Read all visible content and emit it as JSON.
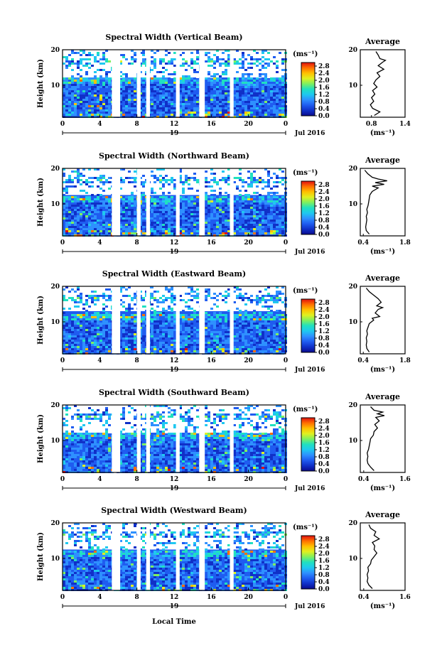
{
  "figure": {
    "x_axis_label": "Local Time",
    "colorbar_unit": "(ms⁻¹)",
    "avg_unit": "(ms⁻¹)",
    "date_label": "Jul 2016",
    "colormap": [
      "#0a0a8c",
      "#1030c8",
      "#1f5cf0",
      "#2e90ff",
      "#1fc8f0",
      "#20e0c0",
      "#7df060",
      "#e0f020",
      "#ffc000",
      "#ff7000",
      "#e01010"
    ]
  },
  "chart_data": [
    {
      "type": "heatmap",
      "title": "Spectral Width (Vertical Beam)",
      "ylabel": "Height (km)",
      "x_ticks": [
        "0",
        "4",
        "8",
        "12",
        "16",
        "20",
        "0"
      ],
      "y_ticks": [
        "20",
        "10"
      ],
      "day_label": "19",
      "xlim": [
        0,
        24
      ],
      "ylim": [
        1,
        20
      ],
      "data_gaps": [
        [
          5.3,
          6.2
        ],
        [
          8.0,
          8.4
        ],
        [
          9.0,
          9.4
        ],
        [
          12.2,
          12.6
        ],
        [
          14.7,
          15.3
        ],
        [
          18.0,
          18.4
        ]
      ],
      "colorbar": {
        "ticks": [
          "2.8",
          "2.4",
          "2.0",
          "1.6",
          "1.2",
          "0.8",
          "0.4",
          "0.0"
        ],
        "range": [
          0,
          3
        ]
      },
      "average": {
        "title": "Average",
        "x_ticks": [
          "0.8",
          "1.4"
        ],
        "xlim": [
          0.6,
          1.4
        ],
        "y_ticks": [
          "20",
          "10"
        ],
        "ylim": [
          1,
          20
        ],
        "profile": [
          [
            0.85,
            1.5
          ],
          [
            0.95,
            2.5
          ],
          [
            0.82,
            3.5
          ],
          [
            0.78,
            4.5
          ],
          [
            0.84,
            5.5
          ],
          [
            0.8,
            6.5
          ],
          [
            0.86,
            7.5
          ],
          [
            0.82,
            8.5
          ],
          [
            0.9,
            9.5
          ],
          [
            0.84,
            10.5
          ],
          [
            0.88,
            11.5
          ],
          [
            0.95,
            12.5
          ],
          [
            0.9,
            13.5
          ],
          [
            1.02,
            14.5
          ],
          [
            0.92,
            15.5
          ],
          [
            1.0,
            16.5
          ],
          [
            1.05,
            17.0
          ],
          [
            0.95,
            17.5
          ],
          [
            0.92,
            18.5
          ],
          [
            0.88,
            19.5
          ]
        ]
      }
    },
    {
      "type": "heatmap",
      "title": "Spectral Width (Northward Beam)",
      "ylabel": "Height (km)",
      "x_ticks": [
        "0",
        "4",
        "8",
        "12",
        "16",
        "20",
        "0"
      ],
      "y_ticks": [
        "20",
        "10"
      ],
      "day_label": "19",
      "xlim": [
        0,
        24
      ],
      "ylim": [
        1,
        20
      ],
      "data_gaps": [
        [
          5.3,
          6.2
        ],
        [
          8.0,
          8.4
        ],
        [
          9.0,
          9.4
        ],
        [
          12.2,
          12.6
        ],
        [
          14.7,
          15.3
        ],
        [
          18.0,
          18.4
        ]
      ],
      "colorbar": {
        "ticks": [
          "2.8",
          "2.4",
          "2.0",
          "1.6",
          "1.2",
          "0.8",
          "0.4",
          "0.0"
        ],
        "range": [
          0,
          3
        ]
      },
      "average": {
        "title": "Average",
        "x_ticks": [
          "0.4",
          "1.8"
        ],
        "xlim": [
          0.3,
          1.8
        ],
        "y_ticks": [
          "20",
          "10"
        ],
        "ylim": [
          1,
          20
        ],
        "profile": [
          [
            0.6,
            1.5
          ],
          [
            0.5,
            2.5
          ],
          [
            0.48,
            3.5
          ],
          [
            0.5,
            4.5
          ],
          [
            0.52,
            5.5
          ],
          [
            0.5,
            6.5
          ],
          [
            0.54,
            7.5
          ],
          [
            0.52,
            8.5
          ],
          [
            0.56,
            9.5
          ],
          [
            0.58,
            10.5
          ],
          [
            0.6,
            11.5
          ],
          [
            0.62,
            12.5
          ],
          [
            0.7,
            13.5
          ],
          [
            0.9,
            14.5
          ],
          [
            0.7,
            15.0
          ],
          [
            1.1,
            15.5
          ],
          [
            0.8,
            16.0
          ],
          [
            1.2,
            16.5
          ],
          [
            0.9,
            17.0
          ],
          [
            0.7,
            17.5
          ],
          [
            0.55,
            18.5
          ],
          [
            0.45,
            19.5
          ]
        ]
      }
    },
    {
      "type": "heatmap",
      "title": "Spectral Width (Eastward Beam)",
      "ylabel": "Height (km)",
      "x_ticks": [
        "0",
        "4",
        "8",
        "12",
        "16",
        "20",
        "0"
      ],
      "y_ticks": [
        "20",
        "10"
      ],
      "day_label": "19",
      "xlim": [
        0,
        24
      ],
      "ylim": [
        1,
        20
      ],
      "data_gaps": [
        [
          5.3,
          6.2
        ],
        [
          8.0,
          8.4
        ],
        [
          9.0,
          9.4
        ],
        [
          12.2,
          12.6
        ],
        [
          14.7,
          15.3
        ],
        [
          18.0,
          18.4
        ]
      ],
      "colorbar": {
        "ticks": [
          "2.8",
          "2.4",
          "2.0",
          "1.6",
          "1.2",
          "0.8",
          "0.4",
          "0.0"
        ],
        "range": [
          0,
          3
        ]
      },
      "average": {
        "title": "Average",
        "x_ticks": [
          "0.4",
          "1.8"
        ],
        "xlim": [
          0.3,
          1.8
        ],
        "y_ticks": [
          "20",
          "10"
        ],
        "ylim": [
          1,
          20
        ],
        "profile": [
          [
            0.6,
            1.5
          ],
          [
            0.52,
            2.5
          ],
          [
            0.5,
            3.5
          ],
          [
            0.52,
            4.5
          ],
          [
            0.5,
            5.5
          ],
          [
            0.54,
            6.5
          ],
          [
            0.52,
            7.5
          ],
          [
            0.56,
            8.5
          ],
          [
            0.6,
            9.5
          ],
          [
            0.75,
            10.5
          ],
          [
            0.7,
            11.0
          ],
          [
            0.95,
            11.5
          ],
          [
            0.8,
            12.5
          ],
          [
            0.9,
            13.5
          ],
          [
            1.05,
            14.0
          ],
          [
            0.85,
            14.5
          ],
          [
            1.0,
            15.5
          ],
          [
            0.9,
            16.5
          ],
          [
            0.75,
            17.5
          ],
          [
            0.6,
            18.5
          ],
          [
            0.5,
            19.5
          ]
        ]
      }
    },
    {
      "type": "heatmap",
      "title": "Spectral Width (Southward Beam)",
      "ylabel": "Height (km)",
      "x_ticks": [
        "0",
        "4",
        "8",
        "12",
        "16",
        "20",
        "0"
      ],
      "y_ticks": [
        "20",
        "10"
      ],
      "day_label": "19",
      "xlim": [
        0,
        24
      ],
      "ylim": [
        1,
        20
      ],
      "data_gaps": [
        [
          5.3,
          6.2
        ],
        [
          8.0,
          8.4
        ],
        [
          9.0,
          9.4
        ],
        [
          12.2,
          12.6
        ],
        [
          14.7,
          15.3
        ],
        [
          18.0,
          18.4
        ]
      ],
      "colorbar": {
        "ticks": [
          "2.8",
          "2.4",
          "2.0",
          "1.6",
          "1.2",
          "0.8",
          "0.4",
          "0.0"
        ],
        "range": [
          0,
          3
        ]
      },
      "average": {
        "title": "Average",
        "x_ticks": [
          "0.4",
          "1.6"
        ],
        "xlim": [
          0.3,
          1.6
        ],
        "y_ticks": [
          "20",
          "10"
        ],
        "ylim": [
          1,
          20
        ],
        "profile": [
          [
            0.7,
            1.5
          ],
          [
            0.6,
            2.5
          ],
          [
            0.52,
            3.5
          ],
          [
            0.5,
            4.5
          ],
          [
            0.52,
            5.5
          ],
          [
            0.5,
            6.5
          ],
          [
            0.54,
            7.5
          ],
          [
            0.56,
            8.5
          ],
          [
            0.58,
            9.5
          ],
          [
            0.6,
            10.5
          ],
          [
            0.68,
            11.5
          ],
          [
            0.7,
            12.5
          ],
          [
            0.8,
            13.5
          ],
          [
            0.72,
            14.5
          ],
          [
            0.85,
            15.5
          ],
          [
            0.75,
            16.5
          ],
          [
            1.0,
            17.0
          ],
          [
            0.8,
            17.5
          ],
          [
            0.95,
            18.0
          ],
          [
            0.7,
            18.5
          ],
          [
            0.6,
            19.5
          ]
        ]
      }
    },
    {
      "type": "heatmap",
      "title": "Spectral Width (Westward Beam)",
      "ylabel": "Height (km)",
      "x_ticks": [
        "0",
        "4",
        "8",
        "12",
        "16",
        "20",
        "0"
      ],
      "y_ticks": [
        "20",
        "10"
      ],
      "day_label": "19",
      "xlim": [
        0,
        24
      ],
      "ylim": [
        1,
        20
      ],
      "data_gaps": [
        [
          5.3,
          6.2
        ],
        [
          8.0,
          8.4
        ],
        [
          9.0,
          9.4
        ],
        [
          12.2,
          12.6
        ],
        [
          14.7,
          15.3
        ],
        [
          18.0,
          18.4
        ]
      ],
      "colorbar": {
        "ticks": [
          "2.8",
          "2.4",
          "2.0",
          "1.6",
          "1.2",
          "0.8",
          "0.4",
          "0.0"
        ],
        "range": [
          0,
          3
        ]
      },
      "average": {
        "title": "Average",
        "x_ticks": [
          "0.4",
          "1.6"
        ],
        "xlim": [
          0.3,
          1.6
        ],
        "y_ticks": [
          "20",
          "10"
        ],
        "ylim": [
          1,
          20
        ],
        "profile": [
          [
            0.65,
            1.5
          ],
          [
            0.55,
            2.5
          ],
          [
            0.5,
            3.5
          ],
          [
            0.52,
            4.5
          ],
          [
            0.5,
            5.5
          ],
          [
            0.54,
            6.5
          ],
          [
            0.52,
            7.5
          ],
          [
            0.6,
            8.5
          ],
          [
            0.62,
            9.5
          ],
          [
            0.7,
            10.5
          ],
          [
            0.78,
            11.5
          ],
          [
            0.7,
            12.5
          ],
          [
            0.72,
            13.5
          ],
          [
            0.65,
            14.5
          ],
          [
            0.85,
            15.5
          ],
          [
            0.7,
            16.5
          ],
          [
            0.75,
            17.5
          ],
          [
            0.6,
            18.5
          ],
          [
            0.55,
            19.5
          ]
        ]
      }
    }
  ]
}
